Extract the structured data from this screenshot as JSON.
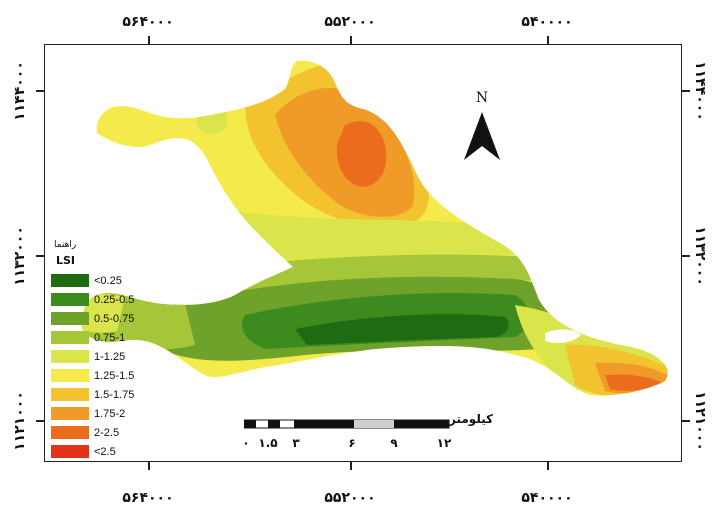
{
  "coordinates": {
    "top": [
      "۵۶۴۰۰۰",
      "۵۵۲۰۰۰",
      "۵۴۰۰۰۰"
    ],
    "bottom": [
      "۵۶۴۰۰۰",
      "۵۵۲۰۰۰",
      "۵۴۰۰۰۰"
    ],
    "left": [
      "۱۱۴۴۰۰۰",
      "۱۱۳۲۰۰۰",
      "۱۱۲۱۰۰۰"
    ],
    "right": [
      "۱۱۴۴۰۰۰",
      "۱۱۳۲۰۰۰",
      "۱۱۲۱۰۰۰"
    ]
  },
  "legend": {
    "subtitle": "راهنما",
    "title": "LSI",
    "items": [
      {
        "label": "<0.25",
        "color": "#1e6b12"
      },
      {
        "label": "0.25-0.5",
        "color": "#3d8a1e"
      },
      {
        "label": "0.5-0.75",
        "color": "#6ea22a"
      },
      {
        "label": "0.75-1",
        "color": "#a6c63a"
      },
      {
        "label": "1-1.25",
        "color": "#d9e54a"
      },
      {
        "label": "1.25-1.5",
        "color": "#f4ea4c"
      },
      {
        "label": "1.5-1.75",
        "color": "#f3c22f"
      },
      {
        "label": "1.75-2",
        "color": "#f09a28"
      },
      {
        "label": "2-2.5",
        "color": "#ea6c1c"
      },
      {
        "label": "<2.5",
        "color": "#e3331a"
      }
    ]
  },
  "north_arrow": {
    "letter": "N"
  },
  "scale_bar": {
    "unit": "کیلومتر",
    "labels": [
      "۰",
      "۱.۵",
      "۳",
      "۶",
      "۹",
      "۱۲"
    ]
  }
}
